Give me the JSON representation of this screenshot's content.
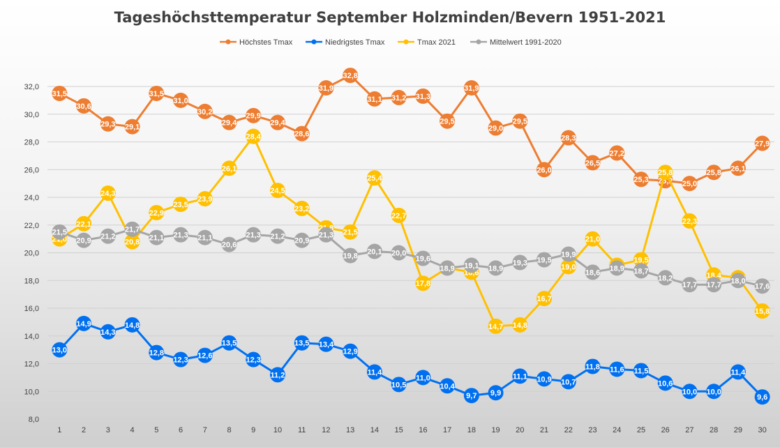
{
  "chart_data": {
    "type": "line",
    "title": "Tageshöchsttemperatur September Holzminden/Bevern 1951-2021",
    "xlabel": "",
    "ylabel": "",
    "ylim": [
      8,
      32
    ],
    "yticks": [
      "8,0",
      "10,0",
      "12,0",
      "14,0",
      "16,0",
      "18,0",
      "20,0",
      "22,0",
      "24,0",
      "26,0",
      "28,0",
      "30,0",
      "32,0"
    ],
    "categories": [
      1,
      2,
      3,
      4,
      5,
      6,
      7,
      8,
      9,
      10,
      11,
      12,
      13,
      14,
      15,
      16,
      17,
      18,
      19,
      20,
      21,
      22,
      23,
      24,
      25,
      26,
      27,
      28,
      29,
      30
    ],
    "legend_position": "top",
    "series": [
      {
        "name": "Höchstes Tmax",
        "color": "#ed7d31",
        "values": [
          31.5,
          30.6,
          29.3,
          29.1,
          31.5,
          31.0,
          30.2,
          29.4,
          29.9,
          29.4,
          28.6,
          31.9,
          32.8,
          31.1,
          31.2,
          31.3,
          29.5,
          31.9,
          29.0,
          29.5,
          26.0,
          28.3,
          26.5,
          27.2,
          25.3,
          25.2,
          25.0,
          25.8,
          26.1,
          27.9
        ]
      },
      {
        "name": "Niedrigstes Tmax",
        "color": "#0070f0",
        "values": [
          13.0,
          14.9,
          14.3,
          14.8,
          12.8,
          12.3,
          12.6,
          13.5,
          12.3,
          11.2,
          13.5,
          13.4,
          12.9,
          11.4,
          10.5,
          11.0,
          10.4,
          9.7,
          9.9,
          11.1,
          10.9,
          10.7,
          11.8,
          11.6,
          11.5,
          10.6,
          10.0,
          10.0,
          11.4,
          9.6
        ]
      },
      {
        "name": "Tmax 2021",
        "color": "#ffc000",
        "values": [
          21.0,
          22.1,
          24.3,
          20.8,
          22.9,
          23.5,
          23.9,
          26.1,
          28.4,
          24.5,
          23.2,
          21.8,
          21.5,
          25.4,
          22.7,
          17.8,
          18.9,
          18.6,
          14.7,
          14.8,
          16.7,
          19.0,
          21.0,
          19.1,
          19.5,
          25.8,
          22.3,
          18.4,
          18.2,
          15.8
        ]
      },
      {
        "name": "Mittelwert 1991-2020",
        "color": "#a5a5a5",
        "values": [
          21.5,
          20.9,
          21.2,
          21.7,
          21.1,
          21.3,
          21.1,
          20.6,
          21.3,
          21.2,
          20.9,
          21.3,
          19.8,
          20.1,
          20.0,
          19.6,
          18.9,
          19.1,
          18.9,
          19.3,
          19.5,
          19.9,
          18.6,
          18.9,
          18.7,
          18.2,
          17.7,
          17.7,
          18.0,
          17.6
        ]
      }
    ]
  }
}
